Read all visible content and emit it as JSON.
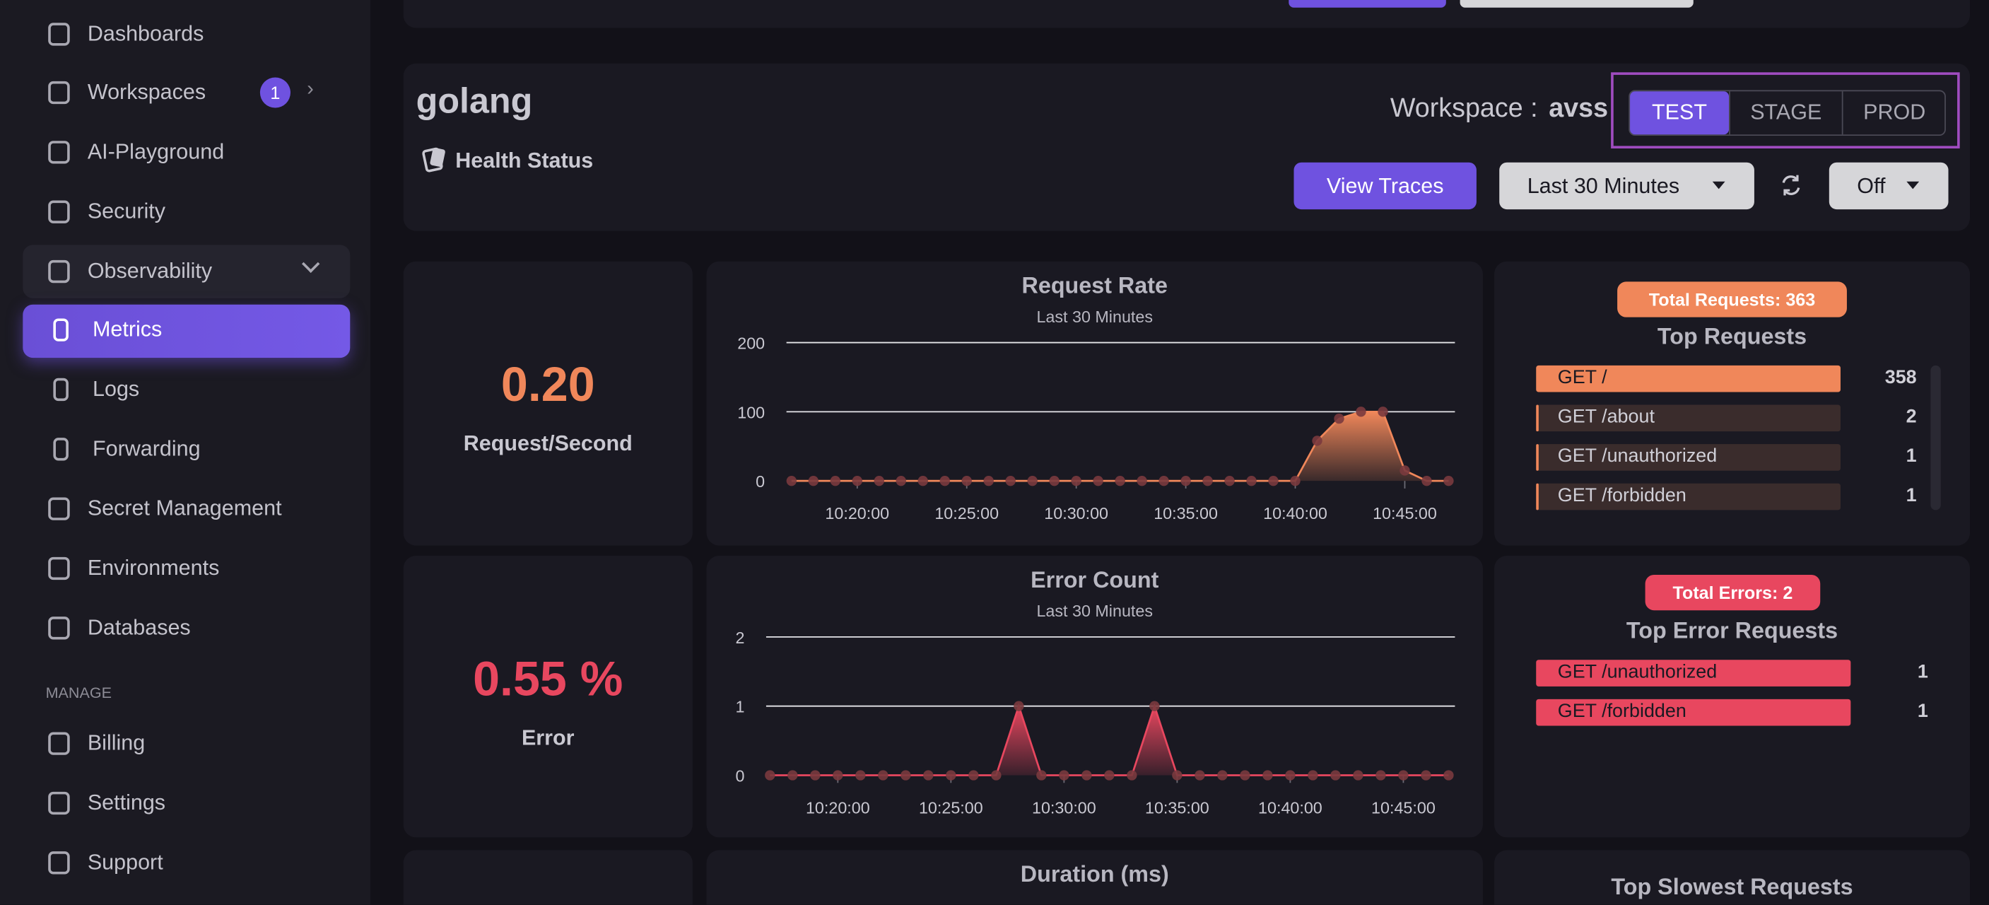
{
  "sidebar": {
    "nav": [
      "Dashboards",
      "Workspaces",
      "AI-Playground",
      "Security",
      "Observability",
      "Metrics",
      "Logs",
      "Forwarding",
      "Secret Management",
      "Environments",
      "Databases"
    ],
    "workspaces_badge": "1",
    "section": "MANAGE",
    "manage": [
      "Billing",
      "Settings",
      "Support"
    ]
  },
  "header": {
    "service": "golang",
    "health": "Health Status",
    "workspace_label": "Workspace :",
    "workspace": "avss",
    "environments": [
      "TEST",
      "STAGE",
      "PROD"
    ],
    "view_traces": "View Traces",
    "time_range": "Last 30 Minutes",
    "refresh": "Off"
  },
  "stats": [
    {
      "value": "0.20",
      "label": "Request/Second"
    },
    {
      "value": "0.55 %",
      "label": "Error"
    }
  ],
  "chart_data": [
    {
      "type": "line",
      "title": "Request Rate",
      "subtitle": "Last 30 Minutes",
      "color": "#f0875a",
      "x": [
        "10:17:00",
        "10:18:00",
        "10:19:00",
        "10:20:00",
        "10:21:00",
        "10:22:00",
        "10:23:00",
        "10:24:00",
        "10:25:00",
        "10:26:00",
        "10:27:00",
        "10:28:00",
        "10:29:00",
        "10:30:00",
        "10:31:00",
        "10:32:00",
        "10:33:00",
        "10:34:00",
        "10:35:00",
        "10:36:00",
        "10:37:00",
        "10:38:00",
        "10:39:00",
        "10:40:00",
        "10:41:00",
        "10:42:00",
        "10:43:00",
        "10:44:00",
        "10:45:00",
        "10:46:00",
        "10:47:00"
      ],
      "values": [
        0,
        0,
        0,
        0,
        0,
        0,
        0,
        0,
        0,
        0,
        0,
        0,
        0,
        0,
        0,
        0,
        0,
        0,
        0,
        0,
        0,
        0,
        0,
        0,
        58,
        90,
        100,
        100,
        15,
        0,
        0
      ],
      "xlim": [
        "10:17:00",
        "10:47:00"
      ],
      "xticks": [
        "10:20:00",
        "10:25:00",
        "10:30:00",
        "10:35:00",
        "10:40:00",
        "10:45:00"
      ],
      "ylim": [
        0,
        200
      ],
      "yticks": [
        0,
        100,
        200
      ],
      "grid": true
    },
    {
      "type": "line",
      "title": "Error Count",
      "subtitle": "Last 30 Minutes",
      "color": "#e8475f",
      "x": [
        "10:17:00",
        "10:18:00",
        "10:19:00",
        "10:20:00",
        "10:21:00",
        "10:22:00",
        "10:23:00",
        "10:24:00",
        "10:25:00",
        "10:26:00",
        "10:27:00",
        "10:28:00",
        "10:29:00",
        "10:30:00",
        "10:31:00",
        "10:32:00",
        "10:33:00",
        "10:34:00",
        "10:35:00",
        "10:36:00",
        "10:37:00",
        "10:38:00",
        "10:39:00",
        "10:40:00",
        "10:41:00",
        "10:42:00",
        "10:43:00",
        "10:44:00",
        "10:45:00",
        "10:46:00",
        "10:47:00"
      ],
      "values": [
        0,
        0,
        0,
        0,
        0,
        0,
        0,
        0,
        0,
        0,
        0,
        1,
        0,
        0,
        0,
        0,
        0,
        1,
        0,
        0,
        0,
        0,
        0,
        0,
        0,
        0,
        0,
        0,
        0,
        0,
        0
      ],
      "xlim": [
        "10:17:00",
        "10:47:00"
      ],
      "xticks": [
        "10:20:00",
        "10:25:00",
        "10:30:00",
        "10:35:00",
        "10:40:00",
        "10:45:00"
      ],
      "ylim": [
        0,
        2
      ],
      "yticks": [
        0,
        1,
        2
      ],
      "grid": true
    }
  ],
  "top_requests": {
    "total": "Total Requests: 363",
    "title": "Top Requests",
    "rows": [
      {
        "name": "GET /",
        "count": 358
      },
      {
        "name": "GET /about",
        "count": 2
      },
      {
        "name": "GET /unauthorized",
        "count": 1
      },
      {
        "name": "GET /forbidden",
        "count": 1
      }
    ]
  },
  "top_errors": {
    "total": "Total Errors: 2",
    "title": "Top Error Requests",
    "rows": [
      {
        "name": "GET /unauthorized",
        "count": 1
      },
      {
        "name": "GET /forbidden",
        "count": 1
      }
    ]
  },
  "duration": {
    "title": "Duration (ms)"
  },
  "slowest": {
    "title": "Top Slowest Requests"
  }
}
